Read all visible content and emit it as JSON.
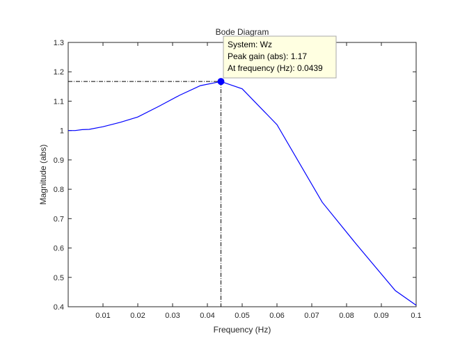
{
  "chart_data": {
    "type": "line",
    "title": "Bode Diagram",
    "xlabel": "Frequency  (Hz)",
    "ylabel": "Magnitude (abs)",
    "xlim": [
      0.0,
      0.1
    ],
    "ylim": [
      0.4,
      1.3
    ],
    "x_scale": "linear",
    "y_scale": "linear",
    "grid": false,
    "x_ticks": [
      0.01,
      0.02,
      0.03,
      0.04,
      0.05,
      0.06,
      0.07,
      0.08,
      0.09,
      0.1
    ],
    "x_tick_labels": [
      "0.01",
      "0.02",
      "0.03",
      "0.04",
      "0.05",
      "0.06",
      "0.07",
      "0.08",
      "0.09",
      "0.1"
    ],
    "y_ticks": [
      0.4,
      0.5,
      0.6,
      0.7,
      0.8,
      0.9,
      1.0,
      1.1,
      1.2,
      1.3
    ],
    "y_tick_labels": [
      "0.4",
      "0.5",
      "0.6",
      "0.7",
      "0.8",
      "0.9",
      "1",
      "1.1",
      "1.2",
      "1.3"
    ],
    "series": [
      {
        "color": "#0000ff",
        "x": [
          0.0,
          0.002,
          0.004,
          0.006,
          0.01,
          0.015,
          0.02,
          0.026,
          0.032,
          0.038,
          0.0439,
          0.05,
          0.06,
          0.073,
          0.083,
          0.094,
          0.1
        ],
        "y": [
          1.0,
          1.0,
          1.003,
          1.004,
          1.013,
          1.028,
          1.046,
          1.082,
          1.12,
          1.153,
          1.167,
          1.142,
          1.02,
          0.756,
          0.61,
          0.455,
          0.405
        ]
      }
    ],
    "peak_marker": {
      "x": 0.0439,
      "y": 1.167,
      "color": "#0000ff",
      "tooltip": {
        "line1": "System: Wz",
        "line2": "Peak gain (abs): 1.17",
        "line3": "At frequency (Hz): 0.0439"
      },
      "tooltip_background": "#ffffe1",
      "tooltip_border": "#a8a8a8"
    }
  }
}
